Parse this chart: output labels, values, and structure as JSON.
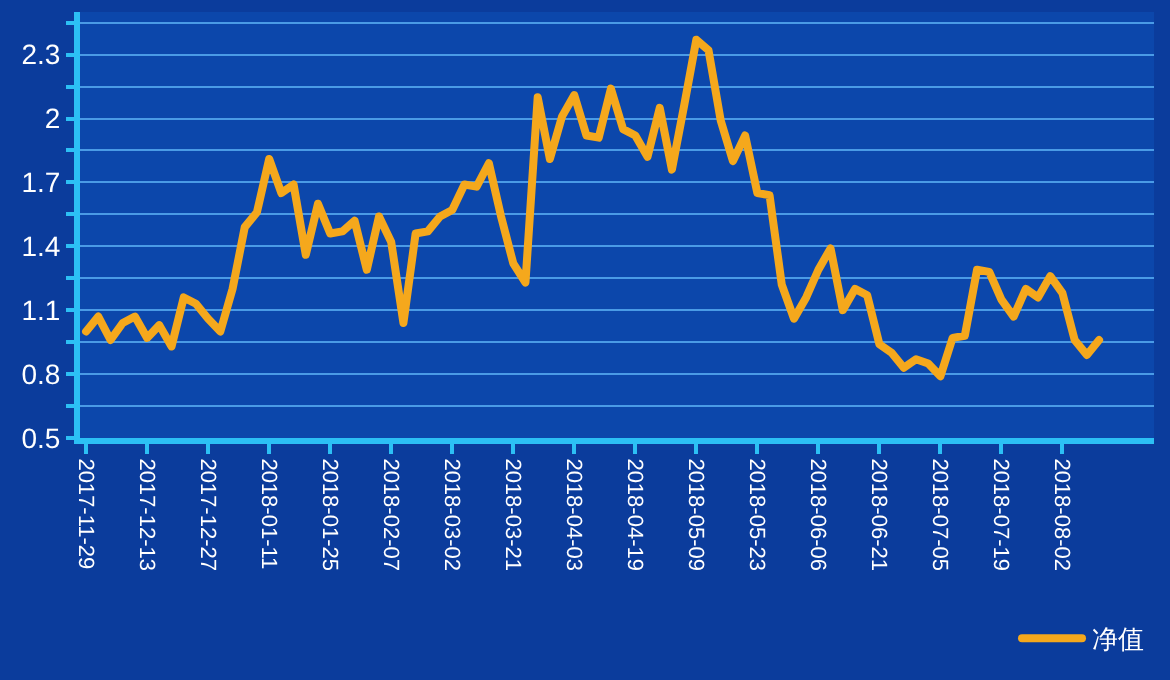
{
  "chart_data": {
    "type": "line",
    "categories": [
      "2017-11-29",
      null,
      null,
      null,
      null,
      "2017-12-13",
      null,
      null,
      null,
      null,
      "2017-12-27",
      null,
      null,
      null,
      null,
      "2018-01-11",
      null,
      null,
      null,
      null,
      "2018-01-25",
      null,
      null,
      null,
      null,
      "2018-02-07",
      null,
      null,
      null,
      null,
      "2018-03-02",
      null,
      null,
      null,
      null,
      "2018-03-21",
      null,
      null,
      null,
      null,
      "2018-04-03",
      null,
      null,
      null,
      null,
      "2018-04-19",
      null,
      null,
      null,
      null,
      "2018-05-09",
      null,
      null,
      null,
      null,
      "2018-05-23",
      null,
      null,
      null,
      null,
      "2018-06-06",
      null,
      null,
      null,
      null,
      "2018-06-21",
      null,
      null,
      null,
      null,
      "2018-07-05",
      null,
      null,
      null,
      null,
      "2018-07-19",
      null,
      null,
      null,
      null,
      "2018-08-02",
      null,
      null,
      null,
      null,
      null,
      null,
      null
    ],
    "series": [
      {
        "name": "净值",
        "color": "#f5a81c",
        "values": [
          1.0,
          1.07,
          0.96,
          1.04,
          1.07,
          0.97,
          1.03,
          0.93,
          1.16,
          1.13,
          1.06,
          1.0,
          1.2,
          1.49,
          1.56,
          1.81,
          1.65,
          1.69,
          1.36,
          1.6,
          1.46,
          1.47,
          1.52,
          1.29,
          1.54,
          1.42,
          1.04,
          1.46,
          1.47,
          1.54,
          1.57,
          1.69,
          1.68,
          1.79,
          1.54,
          1.32,
          1.23,
          2.1,
          1.81,
          2.01,
          2.11,
          1.92,
          1.91,
          2.14,
          1.95,
          1.92,
          1.82,
          2.05,
          1.76,
          2.06,
          2.37,
          2.32,
          1.99,
          1.8,
          1.92,
          1.65,
          1.64,
          1.22,
          1.06,
          1.16,
          1.29,
          1.39,
          1.1,
          1.2,
          1.17,
          0.94,
          0.9,
          0.83,
          0.87,
          0.85,
          0.79,
          0.97,
          0.98,
          1.29,
          1.28,
          1.15,
          1.07,
          1.2,
          1.16,
          1.26,
          1.18,
          0.96,
          0.89,
          0.96,
          null,
          null,
          null,
          null
        ]
      }
    ],
    "ylim": [
      0.5,
      2.5
    ],
    "yticks": [
      0.5,
      {
        "value": 0.65,
        "label": null
      },
      0.8,
      {
        "value": 0.95,
        "label": null
      },
      1.1,
      {
        "value": 1.25,
        "label": null
      },
      1.4,
      {
        "value": 1.55,
        "label": null
      },
      1.7,
      {
        "value": 1.85,
        "label": null
      },
      2,
      {
        "value": 2.15,
        "label": null
      },
      2.3,
      {
        "value": 2.45,
        "label": null
      }
    ],
    "grid": "y",
    "legend": "bottom right",
    "marker": "none",
    "line_style": "solid"
  }
}
